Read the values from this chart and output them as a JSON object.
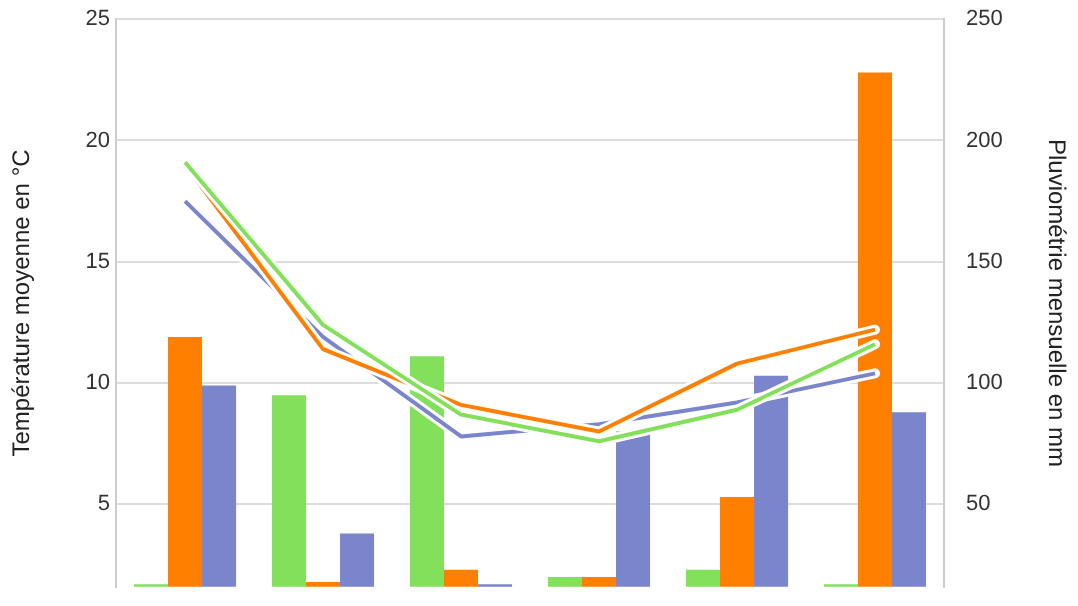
{
  "chart_data": {
    "type": "bar",
    "ylabel": "Température moyenne en °C",
    "y2label": "Pluviométrie mensuelle en mm",
    "categories": [
      null,
      null,
      null,
      null,
      null,
      null
    ],
    "ylim": [
      1.6,
      25
    ],
    "yticks": [
      5,
      10,
      15,
      20,
      25
    ],
    "y2lim": [
      16,
      250
    ],
    "y2ticks": [
      50,
      100,
      150,
      200,
      250
    ],
    "grid": "y",
    "legend": false,
    "marker": "none",
    "series": [
      {
        "axis": "y2",
        "color": "#83e05a",
        "values": [
          17,
          95,
          111,
          20,
          23,
          17
        ]
      },
      {
        "axis": "y2",
        "color": "#ff7f00",
        "values": [
          119,
          18,
          23,
          20,
          53,
          228
        ]
      },
      {
        "axis": "y2",
        "color": "#7a85cc",
        "values": [
          99,
          38,
          17,
          80,
          103,
          88
        ]
      },
      {
        "type": "line",
        "color": "#83e05a",
        "values": [
          19.1,
          12.4,
          8.7,
          7.6,
          8.9,
          11.6
        ]
      },
      {
        "type": "line",
        "color": "#ff7f00",
        "values": [
          19.0,
          11.4,
          9.1,
          8.0,
          10.8,
          12.2
        ]
      },
      {
        "type": "line",
        "color": "#7a85cc",
        "values": [
          17.5,
          11.9,
          7.8,
          8.3,
          9.2,
          10.4
        ]
      }
    ]
  }
}
